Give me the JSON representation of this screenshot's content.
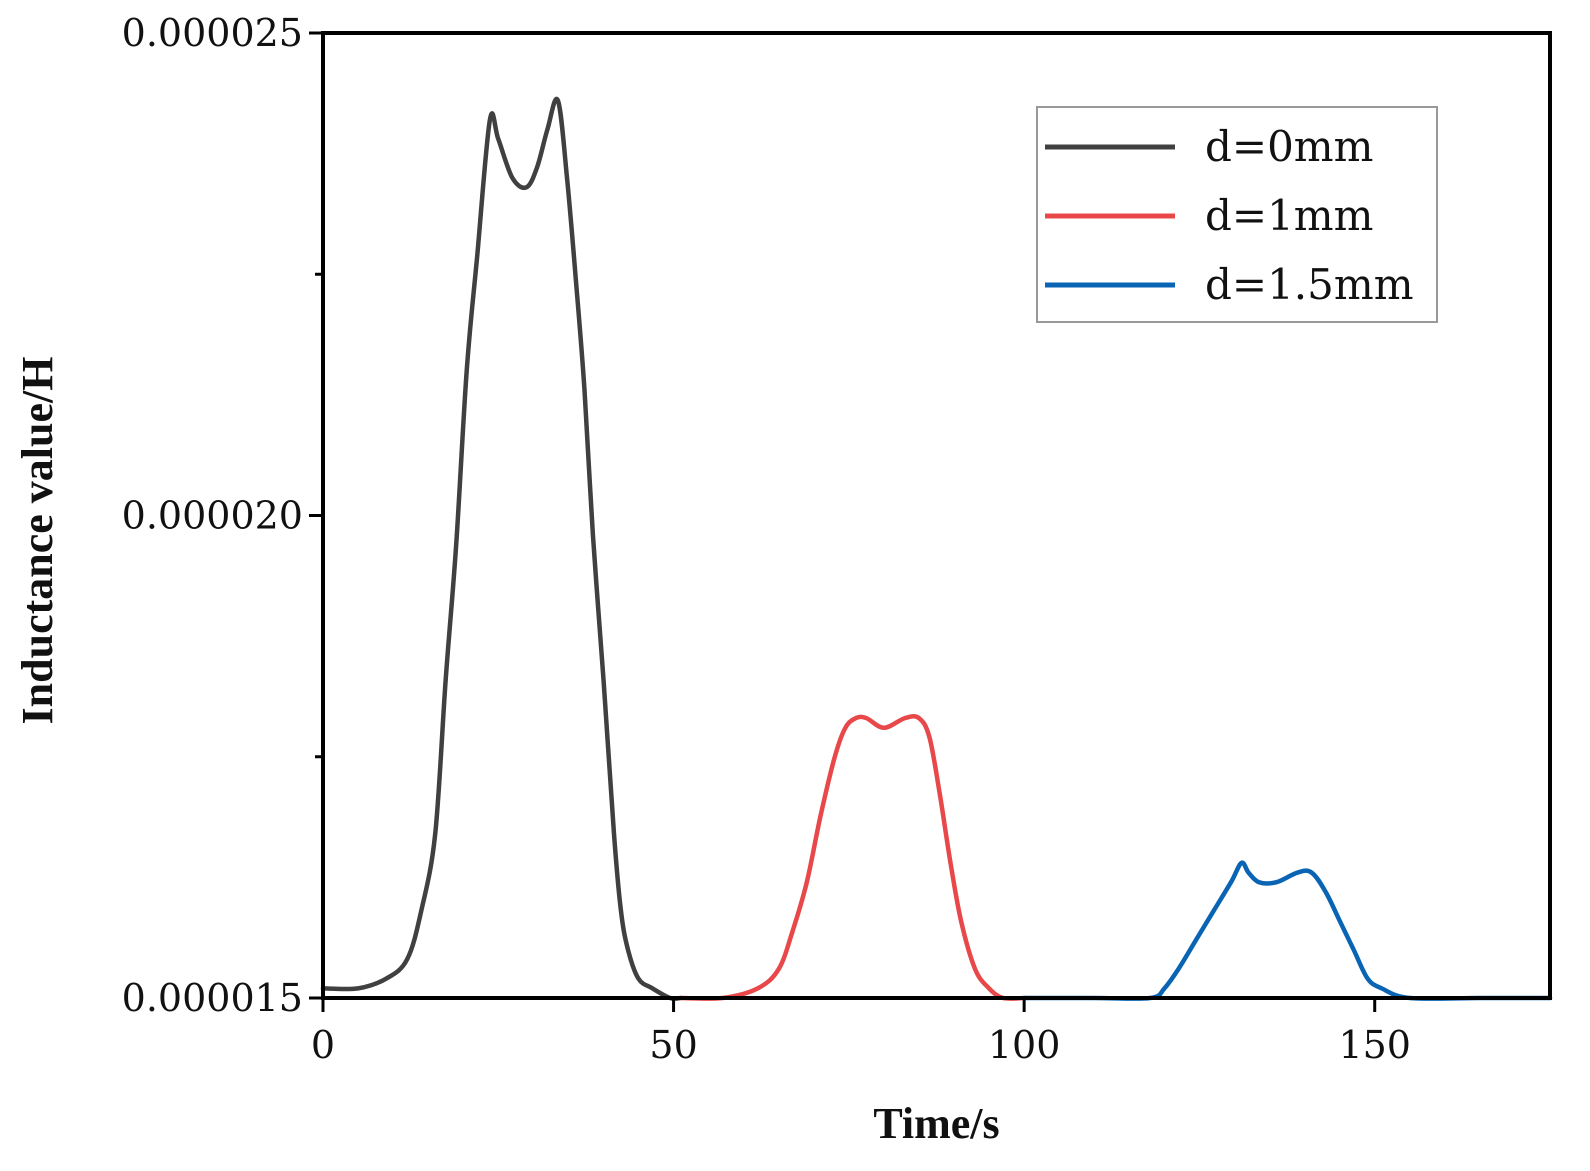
{
  "chart_data": {
    "type": "line",
    "title": "",
    "xlabel": "Time/s",
    "ylabel": "Inductance value/H",
    "xlim": [
      0,
      175
    ],
    "ylim": [
      1.5e-05,
      2.5e-05
    ],
    "xticks": [
      0,
      50,
      100,
      150
    ],
    "xtick_labels": [
      "0",
      "50",
      "100",
      "150"
    ],
    "yticks": [
      1.5e-05,
      2e-05,
      2.5e-05
    ],
    "ytick_labels": [
      "0.000015",
      "0.000020",
      "0.000025"
    ],
    "yminor_ticks": [
      1.75e-05,
      2.25e-05
    ],
    "grid": false,
    "legend_position": "top-right",
    "series": [
      {
        "name": "d=0mm",
        "color": "#404040",
        "x": [
          0,
          5,
          9,
          12,
          14,
          16,
          17.5,
          19,
          20.5,
          22,
          23.8,
          25,
          27,
          29,
          30.5,
          32,
          33.5,
          34.8,
          36,
          37.3,
          38.5,
          40,
          41.5,
          42.5,
          43.5,
          45,
          47,
          49.5,
          51
        ],
        "y": [
          1.51e-05,
          1.51e-05,
          1.52e-05,
          1.54e-05,
          1.59e-05,
          1.67e-05,
          1.83e-05,
          1.97e-05,
          2.15e-05,
          2.27e-05,
          2.41e-05,
          2.39e-05,
          2.35e-05,
          2.34e-05,
          2.36e-05,
          2.4e-05,
          2.43e-05,
          2.35e-05,
          2.25e-05,
          2.13e-05,
          1.98e-05,
          1.83e-05,
          1.67e-05,
          1.59e-05,
          1.55e-05,
          1.52e-05,
          1.51e-05,
          1.5e-05,
          1.5e-05
        ]
      },
      {
        "name": "d=1mm",
        "color": "#e8484a",
        "x": [
          51,
          57,
          62,
          65,
          67,
          69,
          71,
          73,
          74.5,
          76,
          77.5,
          80,
          83,
          85,
          86.5,
          88,
          89.5,
          91,
          93,
          95,
          97,
          100
        ],
        "y": [
          1.5e-05,
          1.5e-05,
          1.51e-05,
          1.53e-05,
          1.57e-05,
          1.62e-05,
          1.69e-05,
          1.75e-05,
          1.78e-05,
          1.79e-05,
          1.79e-05,
          1.78e-05,
          1.79e-05,
          1.79e-05,
          1.77e-05,
          1.71e-05,
          1.64e-05,
          1.58e-05,
          1.53e-05,
          1.51e-05,
          1.5e-05,
          1.5e-05
        ]
      },
      {
        "name": "d=1.5mm",
        "color": "#0a64b4",
        "x": [
          100,
          110,
          118,
          120,
          122,
          124.5,
          127,
          129.5,
          131,
          132,
          133.5,
          136,
          139,
          141,
          143,
          145,
          147,
          149,
          151,
          155,
          165,
          175
        ],
        "y": [
          1.5e-05,
          1.5e-05,
          1.5e-05,
          1.51e-05,
          1.53e-05,
          1.56e-05,
          1.59e-05,
          1.62e-05,
          1.64e-05,
          1.63e-05,
          1.62e-05,
          1.62e-05,
          1.63e-05,
          1.63e-05,
          1.61e-05,
          1.58e-05,
          1.55e-05,
          1.52e-05,
          1.51e-05,
          1.5e-05,
          1.5e-05,
          1.5e-05
        ]
      }
    ]
  }
}
